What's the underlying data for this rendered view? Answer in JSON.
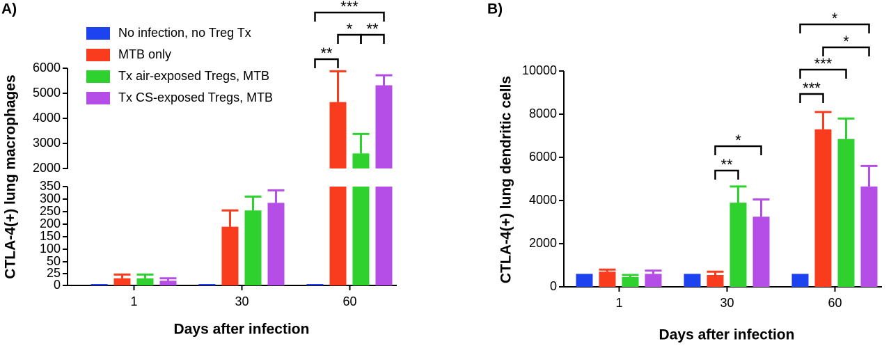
{
  "chart_data": [
    {
      "type": "bar",
      "panel_label": "A)",
      "ylabel": "CTLA-4(+) lung macrophages",
      "xlabel": "Days after infection",
      "categories": [
        "1",
        "30",
        "60"
      ],
      "legend": "upper left",
      "series": [
        {
          "name": "No infection, no Treg Tx",
          "color": "#1d43f0",
          "values": [
            3,
            3,
            3
          ],
          "errors": [
            null,
            null,
            null
          ]
        },
        {
          "name": "MTB only",
          "color": "#f93c1e",
          "values": [
            15,
            190,
            4650
          ],
          "errors": [
            8,
            65,
            1230
          ]
        },
        {
          "name": "Tx air-exposed Tregs, MTB",
          "color": "#2ed12e",
          "values": [
            15,
            255,
            2600
          ],
          "errors": [
            8,
            55,
            780
          ]
        },
        {
          "name": "Tx CS-exposed Tregs, MTB",
          "color": "#b54ee6",
          "values": [
            10,
            285,
            5320
          ],
          "errors": [
            5,
            50,
            400
          ]
        }
      ],
      "y_segments": [
        {
          "ylim": [
            0,
            50
          ],
          "yticks": [
            0,
            25,
            50
          ]
        },
        {
          "ylim": [
            50,
            350
          ],
          "yticks": [
            100,
            150,
            200,
            250,
            300,
            350
          ]
        },
        {
          "ylim": [
            2000,
            6000
          ],
          "yticks": [
            2000,
            3000,
            4000,
            5000,
            6000
          ]
        }
      ],
      "annotations": [
        "**",
        "*",
        "**",
        "***"
      ]
    },
    {
      "type": "bar",
      "panel_label": "B)",
      "ylabel": "CTLA-4(+) lung dendritic cells",
      "xlabel": "Days after infection",
      "categories": [
        "1",
        "30",
        "60"
      ],
      "series": [
        {
          "name": "No infection, no Treg Tx",
          "color": "#1d43f0",
          "values": [
            600,
            600,
            600
          ],
          "errors": [
            null,
            null,
            null
          ]
        },
        {
          "name": "MTB only",
          "color": "#f93c1e",
          "values": [
            700,
            550,
            7300
          ],
          "errors": [
            100,
            150,
            800
          ]
        },
        {
          "name": "Tx air-exposed Tregs, MTB",
          "color": "#2ed12e",
          "values": [
            450,
            3900,
            6850
          ],
          "errors": [
            100,
            750,
            950
          ]
        },
        {
          "name": "Tx CS-exposed Tregs, MTB",
          "color": "#b54ee6",
          "values": [
            600,
            3250,
            4650
          ],
          "errors": [
            150,
            800,
            950
          ]
        }
      ],
      "ylim": [
        0,
        10000
      ],
      "yticks": [
        0,
        2000,
        4000,
        6000,
        8000,
        10000
      ],
      "annotations": [
        "**",
        "*",
        "***",
        "***",
        "*",
        "*"
      ]
    }
  ]
}
